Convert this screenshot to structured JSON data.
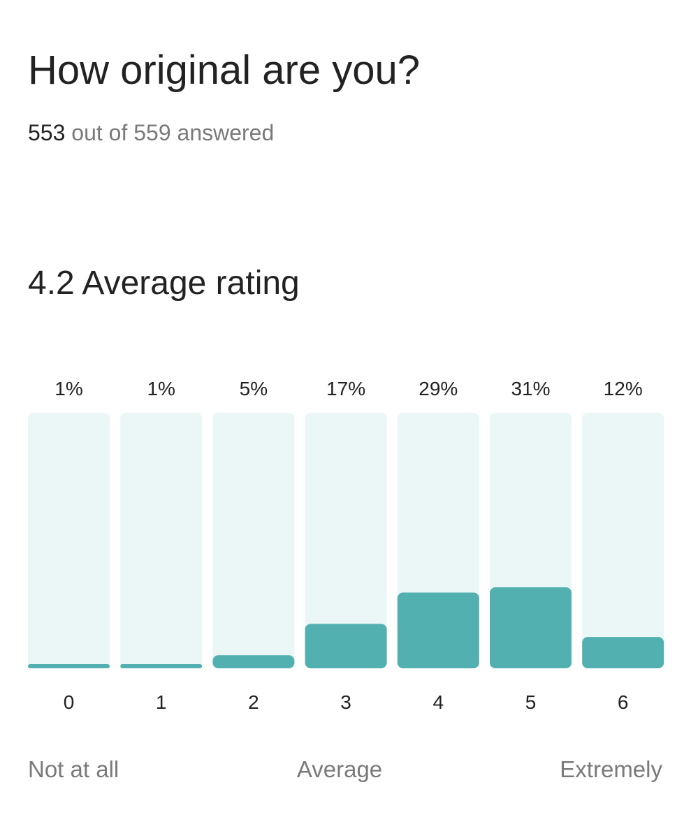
{
  "question": {
    "title": "How original are you?",
    "answered_count": "553",
    "answered_connector": "out of",
    "total_count": "559",
    "answered_suffix": "answered"
  },
  "average": {
    "value": "4.2",
    "label": "Average rating"
  },
  "scale_labels": {
    "low": "Not at all",
    "mid": "Average",
    "high": "Extremely"
  },
  "colors": {
    "bar_fill": "#52b0b0",
    "bar_track": "#ebf6f7",
    "text_primary": "#222222",
    "text_secondary": "#7a7a7a"
  },
  "chart_data": {
    "type": "bar",
    "categories": [
      "0",
      "1",
      "2",
      "3",
      "4",
      "5",
      "6"
    ],
    "values": [
      1,
      1,
      5,
      17,
      29,
      31,
      12
    ],
    "value_labels": [
      "1%",
      "1%",
      "5%",
      "17%",
      "29%",
      "31%",
      "12%"
    ],
    "ylim": [
      0,
      100
    ],
    "grid": false
  }
}
